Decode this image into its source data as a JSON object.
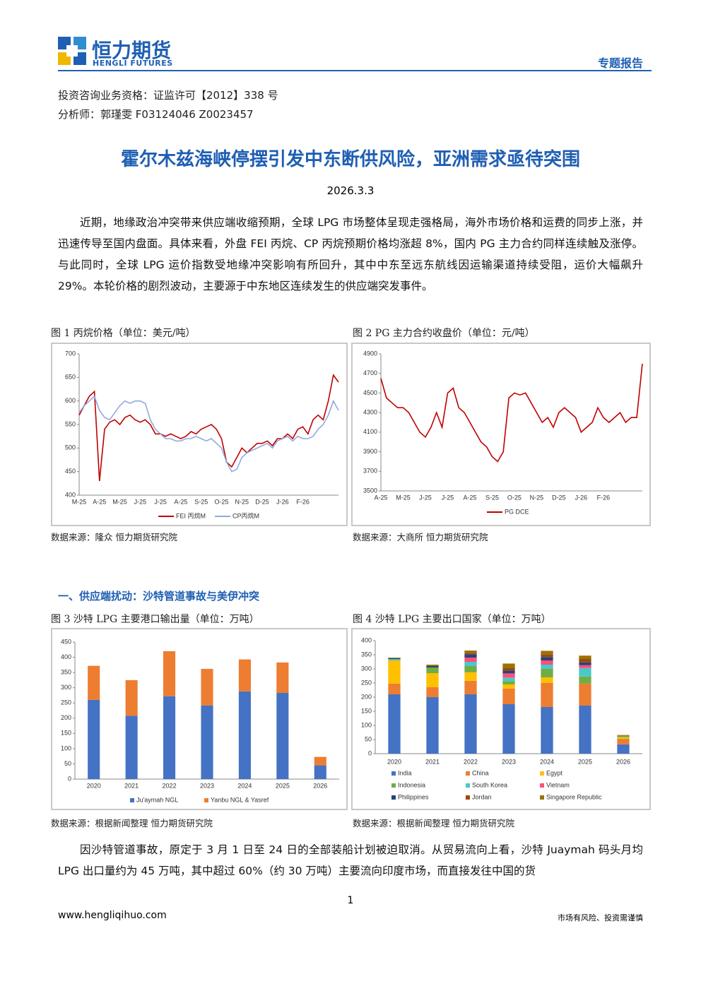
{
  "header": {
    "company": "恒力期货",
    "company_en": "HENGLI FUTURES",
    "report_type": "专题报告"
  },
  "info": [
    "投资咨询业务资格：证监许可【2012】338 号",
    "分析师：郭瑾雯 F03124046 Z0023457"
  ],
  "title": "霍尔木兹海峡停摆引发中东断供风险，亚洲需求亟待突围",
  "date": "2026.3.3",
  "paragraphs": [
    "近期，地缘政治冲突带来供应端收缩预期，全球 LPG 市场整体呈现走强格局，海外市场价格和运费的同步上涨，并迅速传导至国内盘面。具体来看，外盘 FEI 丙烷、CP 丙烷预期价格均涨超 8%，国内 PG 主力合约同样连续触及涨停。与此同时，全球 LPG 运价指数受地缘冲突影响有所回升，其中中东至远东航线因运输渠道持续受阻，运价大幅飙升 29%。本轮价格的剧烈波动，主要源于中东地区连续发生的供应端突发事件。",
    "因沙特管道事故，原定于 3 月 1 日至 24 日的全部装船计划被迫取消。从贸易流向上看，沙特 Juaymah 码头月均 LPG 出口量约为 45 万吨，其中超过 60%（约 30 万吨）主要流向印度市场，而直接发往中国的货"
  ],
  "section": "一、供应端扰动：沙特管道事故与美伊冲突",
  "sources": [
    "数据来源：隆众 恒力期货研究院",
    "数据来源：大商所 恒力期货研究院",
    "数据来源：根据新闻整理 恒力期货研究院",
    "数据来源：根据新闻整理 恒力期货研究院"
  ],
  "footer": {
    "page": "1",
    "website": "www.hengliqihuo.com",
    "disclaimer": "市场有风险、投资需谨慎"
  },
  "chart_data": [
    {
      "type": "line",
      "title": "图 1 丙烷价格（单位：美元/吨）",
      "categories": [
        "M-25",
        null,
        null,
        null,
        "A-25",
        null,
        null,
        null,
        "M-25",
        null,
        null,
        null,
        "J-25",
        null,
        null,
        null,
        "J-25",
        null,
        null,
        null,
        "A-25",
        null,
        null,
        null,
        "S-25",
        null,
        null,
        null,
        "O-25",
        null,
        null,
        null,
        "N-25",
        null,
        null,
        null,
        "D-25",
        null,
        null,
        null,
        "J-26",
        null,
        null,
        null,
        "F-26",
        null,
        null,
        null,
        null,
        null,
        null,
        null
      ],
      "series": [
        {
          "name": "FEI 丙烷M",
          "color": "#c00000",
          "values": [
            570,
            590,
            610,
            620,
            430,
            540,
            555,
            560,
            550,
            565,
            570,
            560,
            555,
            560,
            550,
            530,
            530,
            525,
            530,
            525,
            520,
            525,
            535,
            530,
            540,
            545,
            550,
            540,
            520,
            470,
            460,
            480,
            500,
            490,
            500,
            510,
            510,
            515,
            505,
            520,
            520,
            530,
            520,
            540,
            545,
            530,
            560,
            570,
            560,
            600,
            655,
            640
          ]
        },
        {
          "name": "CP丙烷M",
          "color": "#8faadc",
          "values": [
            575,
            590,
            600,
            610,
            580,
            565,
            560,
            575,
            590,
            600,
            595,
            600,
            600,
            595,
            560,
            540,
            530,
            520,
            520,
            515,
            515,
            520,
            520,
            525,
            520,
            515,
            520,
            510,
            500,
            470,
            450,
            455,
            480,
            490,
            495,
            500,
            505,
            510,
            500,
            515,
            520,
            525,
            515,
            525,
            520,
            520,
            525,
            540,
            550,
            570,
            600,
            580
          ]
        }
      ],
      "ylim": [
        400,
        700
      ],
      "yticks": [
        400,
        450,
        500,
        550,
        600,
        650,
        700
      ]
    },
    {
      "type": "line",
      "title": "图 2 PG 主力合约收盘价（单位：元/吨）",
      "categories": [
        "A-25",
        null,
        null,
        null,
        "M-25",
        null,
        null,
        null,
        "J-25",
        null,
        null,
        null,
        "J-25",
        null,
        null,
        null,
        "A-25",
        null,
        null,
        null,
        "S-25",
        null,
        null,
        null,
        "O-25",
        null,
        null,
        null,
        "N-25",
        null,
        null,
        null,
        "D-25",
        null,
        null,
        null,
        "J-26",
        null,
        null,
        null,
        "F-26",
        null,
        null,
        null,
        null,
        null,
        null,
        null
      ],
      "series": [
        {
          "name": "PG DCE",
          "color": "#c00000",
          "values": [
            4650,
            4450,
            4400,
            4350,
            4350,
            4300,
            4200,
            4100,
            4050,
            4150,
            4300,
            4150,
            4500,
            4550,
            4350,
            4300,
            4200,
            4100,
            4000,
            3950,
            3850,
            3800,
            3900,
            4450,
            4500,
            4480,
            4500,
            4400,
            4300,
            4200,
            4250,
            4150,
            4300,
            4350,
            4300,
            4250,
            4100,
            4150,
            4200,
            4350,
            4250,
            4200,
            4250,
            4300,
            4200,
            4250,
            4250,
            4800
          ]
        }
      ],
      "ylim": [
        3500,
        4900
      ],
      "yticks": [
        3500,
        3700,
        3900,
        4100,
        4300,
        4500,
        4700,
        4900
      ]
    },
    {
      "type": "bar",
      "stacked": true,
      "title": "图 3 沙特 LPG 主要港口输出量（单位：万吨）",
      "categories": [
        "2020",
        "2021",
        "2022",
        "2023",
        "2024",
        "2025",
        "2026"
      ],
      "series": [
        {
          "name": "Ju'aymah NGL",
          "color": "#4472c4",
          "values": [
            260,
            208,
            272,
            242,
            288,
            283,
            45
          ]
        },
        {
          "name": "Yanbu NGL & Yasref",
          "color": "#ed7d31",
          "values": [
            112,
            117,
            148,
            120,
            105,
            100,
            28
          ]
        }
      ],
      "ylim": [
        0,
        450
      ],
      "yticks": [
        0,
        50,
        100,
        150,
        200,
        250,
        300,
        350,
        400,
        450
      ]
    },
    {
      "type": "bar",
      "stacked": true,
      "title": "图 4 沙特 LPG 主要出口国家（单位：万吨）",
      "categories": [
        "2020",
        "2021",
        "2022",
        "2023",
        "2024",
        "2025",
        "2026"
      ],
      "series": [
        {
          "name": "India",
          "color": "#4472c4",
          "values": [
            210,
            200,
            210,
            175,
            165,
            170,
            33
          ]
        },
        {
          "name": "China",
          "color": "#ed7d31",
          "values": [
            38,
            35,
            48,
            55,
            85,
            78,
            20
          ]
        },
        {
          "name": "Egypt",
          "color": "#ffc000",
          "values": [
            82,
            50,
            30,
            15,
            20,
            0,
            5
          ]
        },
        {
          "name": "Indonesia",
          "color": "#70ad47",
          "values": [
            0,
            20,
            22,
            12,
            30,
            25,
            5
          ]
        },
        {
          "name": "South Korea",
          "color": "#4bc8c8",
          "values": [
            5,
            0,
            15,
            12,
            15,
            30,
            0
          ]
        },
        {
          "name": "Vietnam",
          "color": "#ff4f7f",
          "values": [
            0,
            0,
            15,
            15,
            15,
            10,
            0
          ]
        },
        {
          "name": "Philippines",
          "color": "#264478",
          "values": [
            3,
            5,
            12,
            10,
            12,
            10,
            0
          ]
        },
        {
          "name": "Jordan",
          "color": "#9e480e",
          "values": [
            0,
            0,
            5,
            10,
            10,
            12,
            0
          ]
        },
        {
          "name": "Singapore Republic",
          "color": "#997300",
          "values": [
            2,
            5,
            8,
            15,
            12,
            12,
            3
          ]
        }
      ],
      "ylim": [
        0,
        400
      ],
      "yticks": [
        0,
        50,
        100,
        150,
        200,
        250,
        300,
        350,
        400
      ]
    }
  ]
}
